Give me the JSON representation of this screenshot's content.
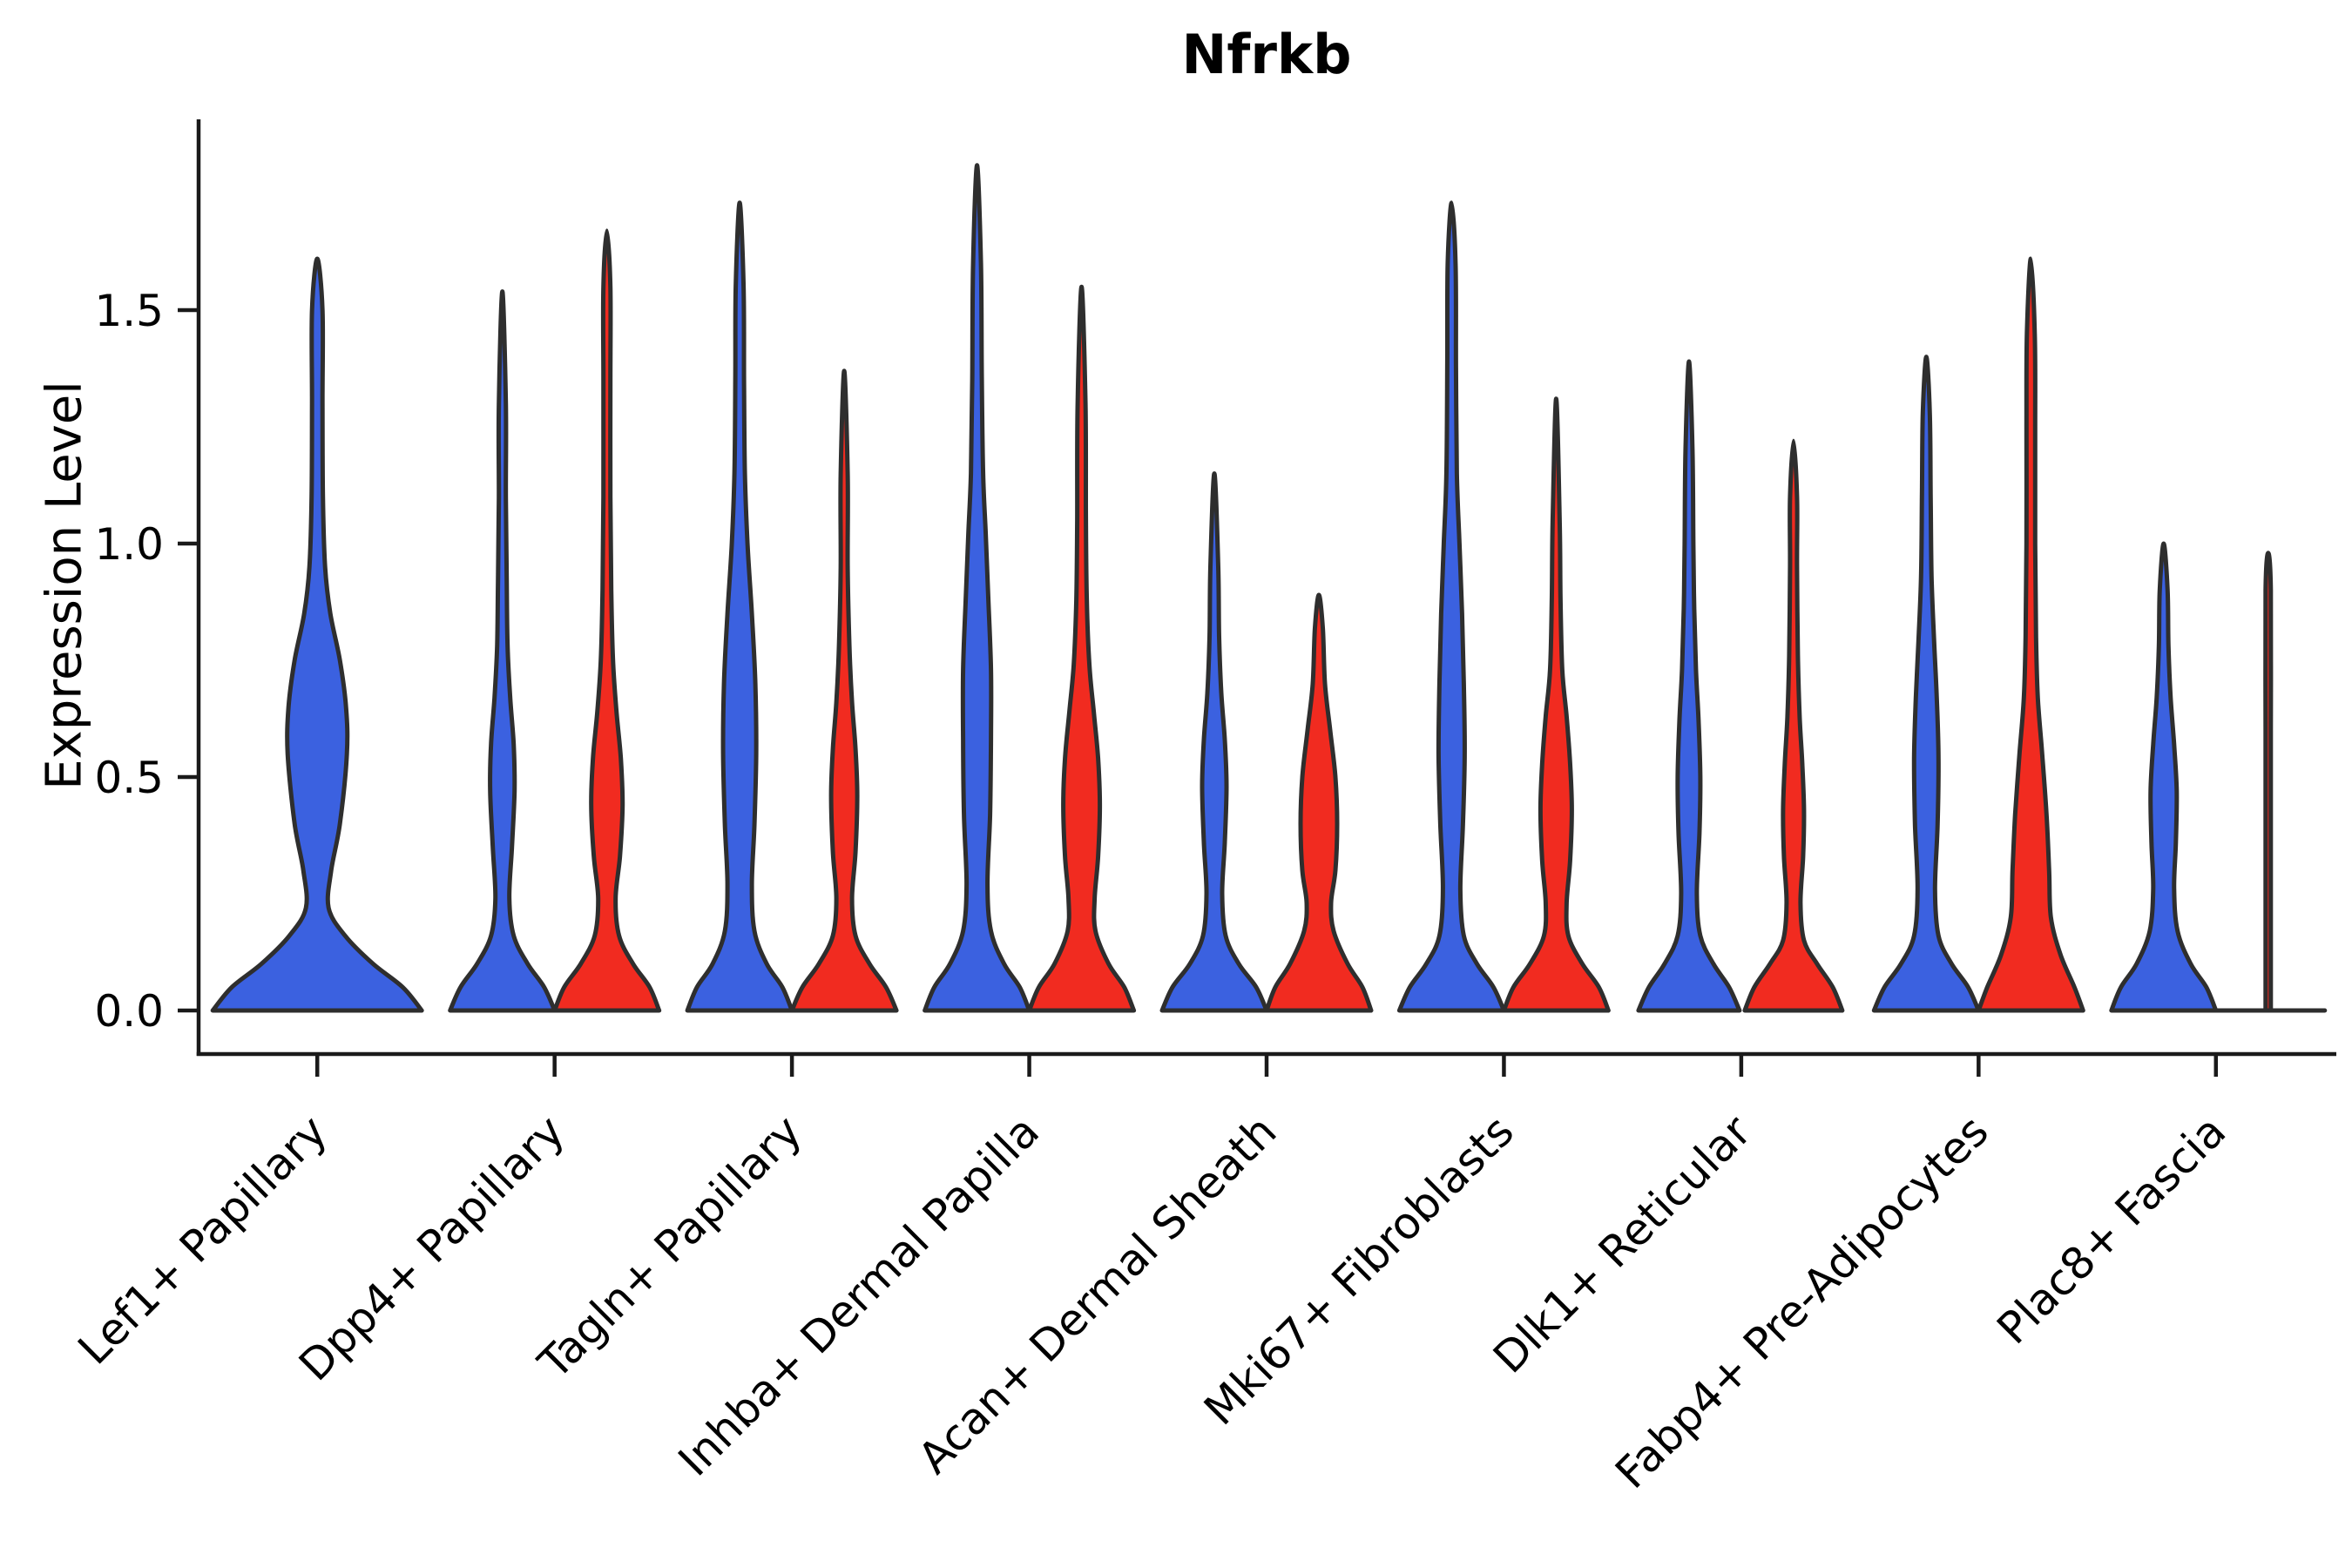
{
  "figure": {
    "background": "#ffffff"
  },
  "chart_data": {
    "type": "violin",
    "title": "Nfrkb",
    "ylabel": "Expression Level",
    "xlabel": "",
    "grid": false,
    "legend": "none",
    "categories": [
      "Lef1+ Papillary",
      "Dpp4+ Papillary",
      "Tagln+ Papillary",
      "Inhba+ Dermal Papilla",
      "Acan+ Dermal Sheath",
      "Mki67+ Fibroblasts",
      "Dlk1+ Reticular",
      "Fabp4+ Pre-Adipocytes",
      "Plac8+ Fascia"
    ],
    "yticks": [
      0.0,
      0.5,
      1.0,
      1.5
    ],
    "ylim": [
      -0.093,
      1.908
    ],
    "series_colors": {
      "blue": "#3B61E0",
      "red": "#F12B20"
    },
    "edge_color": "#2E2E2E",
    "max_expression": {
      "blue": [
        1.61,
        1.54,
        1.73,
        1.81,
        1.15,
        1.73,
        1.39,
        1.4,
        1.0
      ],
      "red": [
        null,
        1.67,
        1.37,
        1.55,
        0.89,
        1.31,
        1.22,
        1.61,
        0.98
      ]
    },
    "violins": [
      {
        "category_index": 0,
        "series": "blue",
        "dx": 0,
        "profile": [
          [
            0,
            120
          ],
          [
            0.05,
            98
          ],
          [
            0.1,
            64
          ],
          [
            0.16,
            32
          ],
          [
            0.22,
            13
          ],
          [
            0.3,
            16
          ],
          [
            0.4,
            26
          ],
          [
            0.55,
            34
          ],
          [
            0.65,
            33
          ],
          [
            0.75,
            26
          ],
          [
            0.85,
            15
          ],
          [
            0.95,
            9
          ],
          [
            1.1,
            6.5
          ],
          [
            1.3,
            6
          ],
          [
            1.5,
            6
          ],
          [
            1.61,
            0
          ]
        ]
      },
      {
        "category_index": 1,
        "series": "blue",
        "dx": -60,
        "profile": [
          [
            0,
            60
          ],
          [
            0.05,
            48
          ],
          [
            0.1,
            29
          ],
          [
            0.16,
            13
          ],
          [
            0.24,
            8
          ],
          [
            0.35,
            11
          ],
          [
            0.47,
            14
          ],
          [
            0.57,
            13
          ],
          [
            0.67,
            9
          ],
          [
            0.78,
            6
          ],
          [
            0.92,
            5
          ],
          [
            1.1,
            4
          ],
          [
            1.3,
            4
          ],
          [
            1.54,
            0
          ]
        ]
      },
      {
        "category_index": 1,
        "series": "red",
        "dx": 60,
        "profile": [
          [
            0,
            60
          ],
          [
            0.05,
            49
          ],
          [
            0.1,
            30
          ],
          [
            0.16,
            14
          ],
          [
            0.24,
            10
          ],
          [
            0.33,
            15
          ],
          [
            0.44,
            18
          ],
          [
            0.54,
            16
          ],
          [
            0.64,
            11
          ],
          [
            0.75,
            7
          ],
          [
            0.9,
            5
          ],
          [
            1.1,
            4
          ],
          [
            1.35,
            4
          ],
          [
            1.55,
            4
          ],
          [
            1.67,
            0
          ]
        ]
      },
      {
        "category_index": 2,
        "series": "blue",
        "dx": -60,
        "profile": [
          [
            0,
            60
          ],
          [
            0.05,
            49
          ],
          [
            0.1,
            31
          ],
          [
            0.17,
            17
          ],
          [
            0.27,
            14
          ],
          [
            0.4,
            17
          ],
          [
            0.55,
            19
          ],
          [
            0.7,
            18
          ],
          [
            0.85,
            14
          ],
          [
            1.0,
            9
          ],
          [
            1.15,
            6
          ],
          [
            1.35,
            5
          ],
          [
            1.55,
            4.5
          ],
          [
            1.73,
            0
          ]
        ]
      },
      {
        "category_index": 2,
        "series": "red",
        "dx": 60,
        "profile": [
          [
            0,
            60
          ],
          [
            0.05,
            48
          ],
          [
            0.1,
            29
          ],
          [
            0.16,
            13
          ],
          [
            0.24,
            9
          ],
          [
            0.34,
            13
          ],
          [
            0.46,
            15
          ],
          [
            0.56,
            13
          ],
          [
            0.66,
            9
          ],
          [
            0.78,
            6
          ],
          [
            0.95,
            4
          ],
          [
            1.15,
            4
          ],
          [
            1.37,
            0
          ]
        ]
      },
      {
        "category_index": 3,
        "series": "blue",
        "dx": -60,
        "profile": [
          [
            0,
            60
          ],
          [
            0.05,
            49
          ],
          [
            0.1,
            31
          ],
          [
            0.17,
            16
          ],
          [
            0.27,
            12
          ],
          [
            0.42,
            15
          ],
          [
            0.58,
            16
          ],
          [
            0.73,
            16
          ],
          [
            0.88,
            13
          ],
          [
            1.02,
            10
          ],
          [
            1.15,
            7
          ],
          [
            1.35,
            5.5
          ],
          [
            1.6,
            4.5
          ],
          [
            1.81,
            0
          ]
        ]
      },
      {
        "category_index": 3,
        "series": "red",
        "dx": 60,
        "profile": [
          [
            0,
            60
          ],
          [
            0.05,
            49
          ],
          [
            0.1,
            31
          ],
          [
            0.17,
            16
          ],
          [
            0.24,
            15
          ],
          [
            0.33,
            19
          ],
          [
            0.44,
            21
          ],
          [
            0.54,
            19
          ],
          [
            0.64,
            14
          ],
          [
            0.74,
            9
          ],
          [
            0.88,
            6
          ],
          [
            1.05,
            5
          ],
          [
            1.3,
            4.5
          ],
          [
            1.55,
            0
          ]
        ]
      },
      {
        "category_index": 4,
        "series": "blue",
        "dx": -60,
        "profile": [
          [
            0,
            60
          ],
          [
            0.05,
            48
          ],
          [
            0.1,
            28
          ],
          [
            0.16,
            13
          ],
          [
            0.25,
            9
          ],
          [
            0.36,
            12
          ],
          [
            0.48,
            14
          ],
          [
            0.58,
            12
          ],
          [
            0.68,
            8
          ],
          [
            0.8,
            5.5
          ],
          [
            0.95,
            4.5
          ],
          [
            1.15,
            0
          ]
        ]
      },
      {
        "category_index": 4,
        "series": "red",
        "dx": 60,
        "profile": [
          [
            0,
            60
          ],
          [
            0.05,
            50
          ],
          [
            0.1,
            33
          ],
          [
            0.17,
            17
          ],
          [
            0.23,
            14
          ],
          [
            0.3,
            19
          ],
          [
            0.4,
            21
          ],
          [
            0.5,
            19
          ],
          [
            0.6,
            13
          ],
          [
            0.7,
            7
          ],
          [
            0.82,
            4.5
          ],
          [
            0.89,
            0
          ]
        ]
      },
      {
        "category_index": 5,
        "series": "blue",
        "dx": -60,
        "profile": [
          [
            0,
            60
          ],
          [
            0.05,
            48
          ],
          [
            0.1,
            29
          ],
          [
            0.16,
            14
          ],
          [
            0.26,
            10
          ],
          [
            0.4,
            13
          ],
          [
            0.55,
            15
          ],
          [
            0.7,
            14
          ],
          [
            0.85,
            12
          ],
          [
            1.0,
            9
          ],
          [
            1.15,
            6
          ],
          [
            1.38,
            5
          ],
          [
            1.6,
            4.5
          ],
          [
            1.73,
            0
          ]
        ]
      },
      {
        "category_index": 5,
        "series": "red",
        "dx": 60,
        "profile": [
          [
            0,
            60
          ],
          [
            0.05,
            49
          ],
          [
            0.1,
            30
          ],
          [
            0.16,
            14
          ],
          [
            0.23,
            12
          ],
          [
            0.32,
            16
          ],
          [
            0.43,
            18
          ],
          [
            0.53,
            16
          ],
          [
            0.63,
            12
          ],
          [
            0.73,
            7
          ],
          [
            0.88,
            5
          ],
          [
            1.05,
            4
          ],
          [
            1.31,
            0
          ]
        ]
      },
      {
        "category_index": 6,
        "series": "blue",
        "dx": -60,
        "profile": [
          [
            0,
            58
          ],
          [
            0.05,
            46
          ],
          [
            0.1,
            28
          ],
          [
            0.16,
            13
          ],
          [
            0.25,
            9
          ],
          [
            0.38,
            12
          ],
          [
            0.5,
            13
          ],
          [
            0.62,
            11
          ],
          [
            0.73,
            8
          ],
          [
            0.86,
            6
          ],
          [
            1.0,
            5
          ],
          [
            1.2,
            4
          ],
          [
            1.39,
            0
          ]
        ]
      },
      {
        "category_index": 6,
        "series": "red",
        "dx": 60,
        "profile": [
          [
            0,
            56
          ],
          [
            0.05,
            45
          ],
          [
            0.1,
            27
          ],
          [
            0.15,
            12
          ],
          [
            0.23,
            8
          ],
          [
            0.33,
            11
          ],
          [
            0.43,
            12
          ],
          [
            0.53,
            10
          ],
          [
            0.63,
            7
          ],
          [
            0.76,
            5
          ],
          [
            0.95,
            4
          ],
          [
            1.1,
            4
          ],
          [
            1.22,
            0
          ]
        ]
      },
      {
        "category_index": 7,
        "series": "blue",
        "dx": -60,
        "profile": [
          [
            0,
            60
          ],
          [
            0.05,
            48
          ],
          [
            0.1,
            29
          ],
          [
            0.16,
            14
          ],
          [
            0.26,
            10
          ],
          [
            0.4,
            13
          ],
          [
            0.54,
            14
          ],
          [
            0.67,
            12
          ],
          [
            0.79,
            9
          ],
          [
            0.93,
            6
          ],
          [
            1.1,
            5
          ],
          [
            1.28,
            4
          ],
          [
            1.4,
            0
          ]
        ]
      },
      {
        "category_index": 7,
        "series": "red",
        "dx": 60,
        "profile": [
          [
            0,
            60
          ],
          [
            0.05,
            50
          ],
          [
            0.12,
            34
          ],
          [
            0.2,
            23
          ],
          [
            0.3,
            21
          ],
          [
            0.42,
            18
          ],
          [
            0.55,
            13
          ],
          [
            0.67,
            8
          ],
          [
            0.8,
            6
          ],
          [
            1.0,
            5
          ],
          [
            1.25,
            5
          ],
          [
            1.45,
            4.5
          ],
          [
            1.61,
            0
          ]
        ]
      },
      {
        "category_index": 8,
        "series": "blue",
        "dx": -60,
        "profile": [
          [
            0,
            60
          ],
          [
            0.05,
            49
          ],
          [
            0.1,
            31
          ],
          [
            0.17,
            16
          ],
          [
            0.26,
            12
          ],
          [
            0.36,
            14
          ],
          [
            0.47,
            15
          ],
          [
            0.57,
            12
          ],
          [
            0.67,
            8
          ],
          [
            0.78,
            5.5
          ],
          [
            0.9,
            4.5
          ],
          [
            1.0,
            0
          ]
        ]
      },
      {
        "category_index": 8,
        "series": "red",
        "dx": 60,
        "profile": [
          [
            0,
            3
          ],
          [
            0.3,
            3
          ],
          [
            0.6,
            3
          ],
          [
            0.9,
            3
          ],
          [
            0.98,
            0
          ]
        ],
        "base_extent": 65
      }
    ]
  }
}
